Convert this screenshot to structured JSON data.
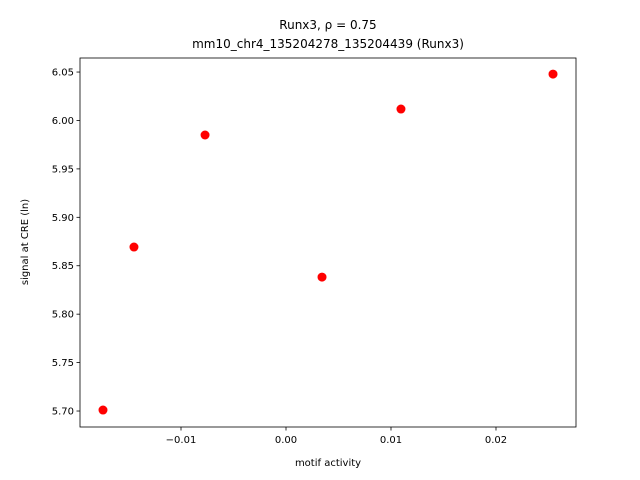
{
  "chart_data": {
    "type": "scatter",
    "title": "Runx3, ρ = 0.75",
    "subtitle": "mm10_chr4_135204278_135204439 (Runx3)",
    "x_label": "motif activity",
    "y_label": "signal at CRE (ln)",
    "x": [
      -0.01743,
      -0.01448,
      -0.00771,
      0.00343,
      0.01095,
      0.02543
    ],
    "values": [
      5.701,
      5.8693,
      5.985,
      5.8383,
      6.0118,
      6.0479
    ],
    "color": "#ff0000",
    "xlim": [
      -0.01962,
      0.02762
    ],
    "ylim": [
      5.6835,
      6.0645
    ],
    "xticks": [
      {
        "value": -0.01,
        "label": "−0.01"
      },
      {
        "value": 0,
        "label": "0.00"
      },
      {
        "value": 0.01,
        "label": "0.01"
      },
      {
        "value": 0.02,
        "label": "0.02"
      }
    ],
    "yticks": [
      {
        "value": 5.7,
        "label": "5.70"
      },
      5.75,
      {
        "value": 5.8,
        "label": "5.80"
      },
      5.85,
      {
        "value": 5.9,
        "label": "5.90"
      },
      5.95,
      {
        "value": 6.0,
        "label": "6.00"
      },
      6.05
    ],
    "grid": false
  }
}
